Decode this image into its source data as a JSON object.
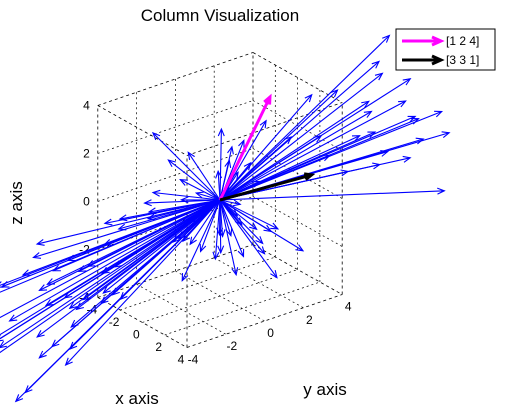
{
  "chart_data": {
    "type": "quiver3",
    "title": "Column Visualization",
    "xlabel": "x axis",
    "ylabel": "y axis",
    "zlabel": "z axis",
    "xlim": [
      -4,
      4
    ],
    "ylim": [
      -4,
      4
    ],
    "zlim": [
      -4,
      4
    ],
    "xticks": [
      "-4",
      "-2",
      "0",
      "2",
      "4"
    ],
    "yticks": [
      "-4",
      "-2",
      "0",
      "2",
      "4"
    ],
    "zticks": [
      "-4",
      "-2",
      "0",
      "2",
      "4"
    ],
    "grid": true,
    "legend_position": "top-right",
    "series": [
      {
        "name": "[1 2 4]",
        "color": "#ff00ff",
        "vectors": [
          [
            1,
            2,
            4
          ]
        ]
      },
      {
        "name": "[3 3 1]",
        "color": "#000000",
        "vectors": [
          [
            3,
            3,
            1
          ]
        ]
      }
    ],
    "background_vectors": {
      "color": "#0000ff",
      "count": 110,
      "note_visible": false
    }
  }
}
